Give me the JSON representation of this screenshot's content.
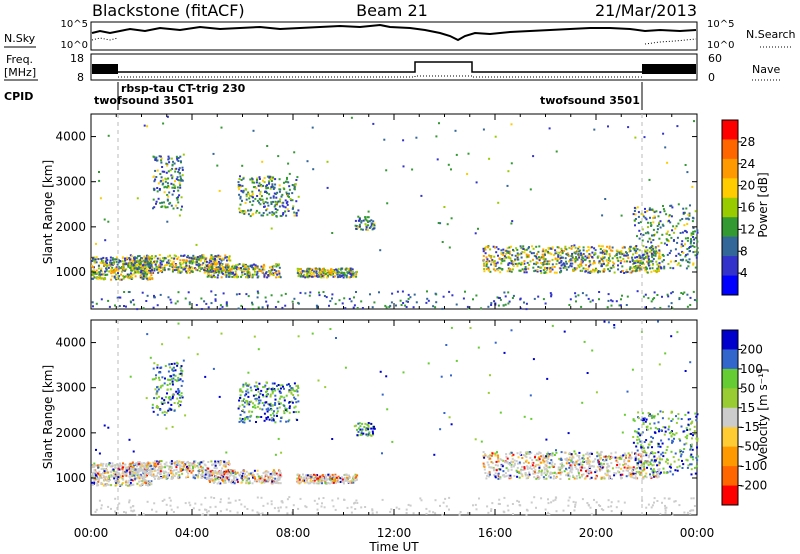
{
  "header": {
    "station": "Blackstone (fitACF)",
    "beam": "Beam 21",
    "date": "21/Mar/2013"
  },
  "panels": {
    "noise_left_label": "N.Sky",
    "noise_right_label": "N.Search",
    "noise_left_ticks": [
      "10^5",
      "10^0"
    ],
    "noise_right_ticks": [
      "10^5",
      "10^0"
    ],
    "freq_label_1": "Freq.",
    "freq_label_2": "[MHz]",
    "freq_ticks": [
      "18",
      "8"
    ],
    "nave_label": "Nave",
    "nave_ticks": [
      "60",
      "0"
    ],
    "cpid_label": "CPID",
    "cpid_modes": [
      "twofsound 3501",
      "rbsp-tau CT-trig 230",
      "twofsound 3501"
    ]
  },
  "chart_data": [
    {
      "type": "heatmap",
      "title": "Power",
      "ylabel": "Slant Range [km]",
      "xlabel": "Time UT",
      "colorbar_label": "Power [dB]",
      "colorbar_ticks": [
        "28",
        "24",
        "20",
        "16",
        "12",
        "8",
        "4"
      ],
      "colorbar_colors": [
        "#ff0000",
        "#ff6600",
        "#ff9900",
        "#ffcc00",
        "#99cc00",
        "#339933",
        "#336699",
        "#3333cc",
        "#0000ff"
      ],
      "ylim": [
        180,
        4500
      ],
      "yticks": [
        "4000",
        "3000",
        "2000",
        "1000"
      ],
      "xticks": [
        "00:00",
        "04:00",
        "08:00",
        "12:00",
        "16:00",
        "20:00",
        "00:00"
      ]
    },
    {
      "type": "heatmap",
      "title": "Velocity",
      "ylabel": "Slant Range [km]",
      "xlabel": "Time UT",
      "colorbar_label": "Velocity [m s⁻¹]",
      "colorbar_ticks": [
        "200",
        "100",
        "50",
        "15",
        "-15",
        "-50",
        "-100",
        "-200"
      ],
      "colorbar_colors": [
        "#0000cc",
        "#3366cc",
        "#66cc33",
        "#99cc33",
        "#cccccc",
        "#ffcc33",
        "#ff9900",
        "#ff6600",
        "#ff0000"
      ],
      "ylim": [
        180,
        4500
      ],
      "yticks": [
        "4000",
        "3000",
        "2000",
        "1000"
      ],
      "xticks": [
        "00:00",
        "04:00",
        "08:00",
        "12:00",
        "16:00",
        "20:00",
        "00:00"
      ]
    }
  ]
}
